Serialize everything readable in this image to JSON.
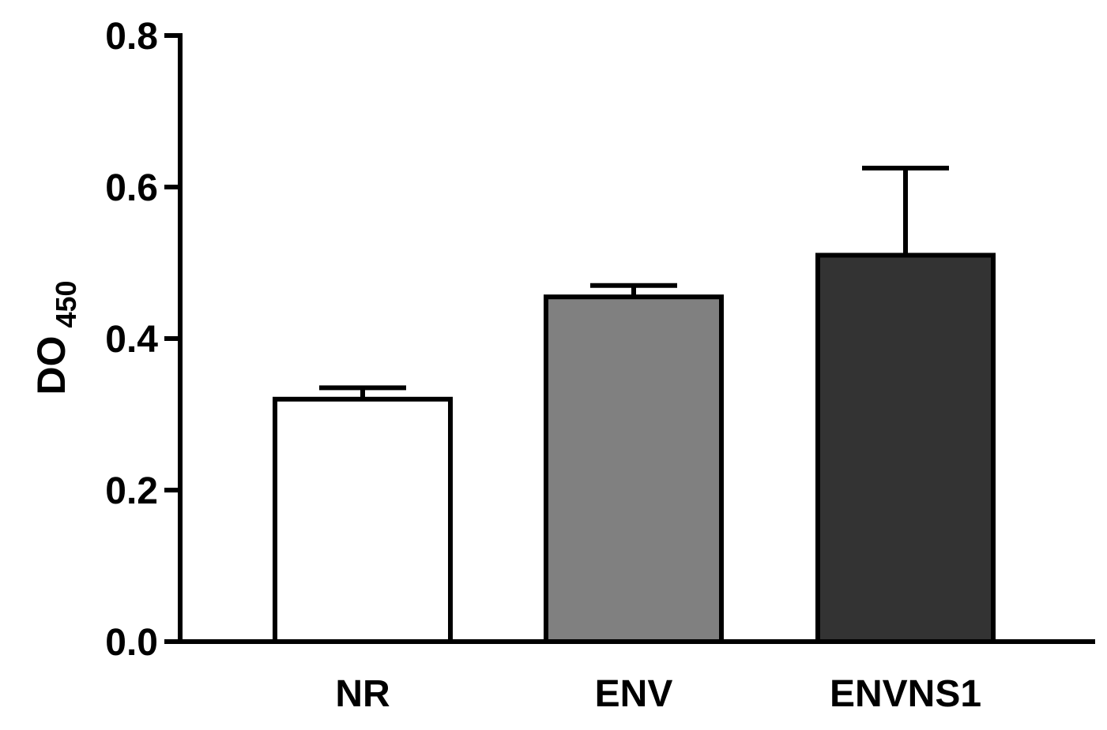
{
  "chart_data": {
    "type": "bar",
    "title": "",
    "xlabel": "",
    "ylabel": "DO",
    "ylabel_subscript": "450",
    "categories": [
      "NR",
      "ENV",
      "ENVNS1"
    ],
    "values": [
      0.32,
      0.455,
      0.51
    ],
    "error_upper": [
      0.015,
      0.015,
      0.115
    ],
    "ylim": [
      0,
      0.8
    ],
    "yticks": [
      "0.0",
      "0.2",
      "0.4",
      "0.6",
      "0.8"
    ],
    "ytick_values": [
      0,
      0.2,
      0.4,
      0.6,
      0.8
    ],
    "bar_colors": [
      "#ffffff",
      "#808080",
      "#333333"
    ],
    "grid": false,
    "legend": "none"
  }
}
